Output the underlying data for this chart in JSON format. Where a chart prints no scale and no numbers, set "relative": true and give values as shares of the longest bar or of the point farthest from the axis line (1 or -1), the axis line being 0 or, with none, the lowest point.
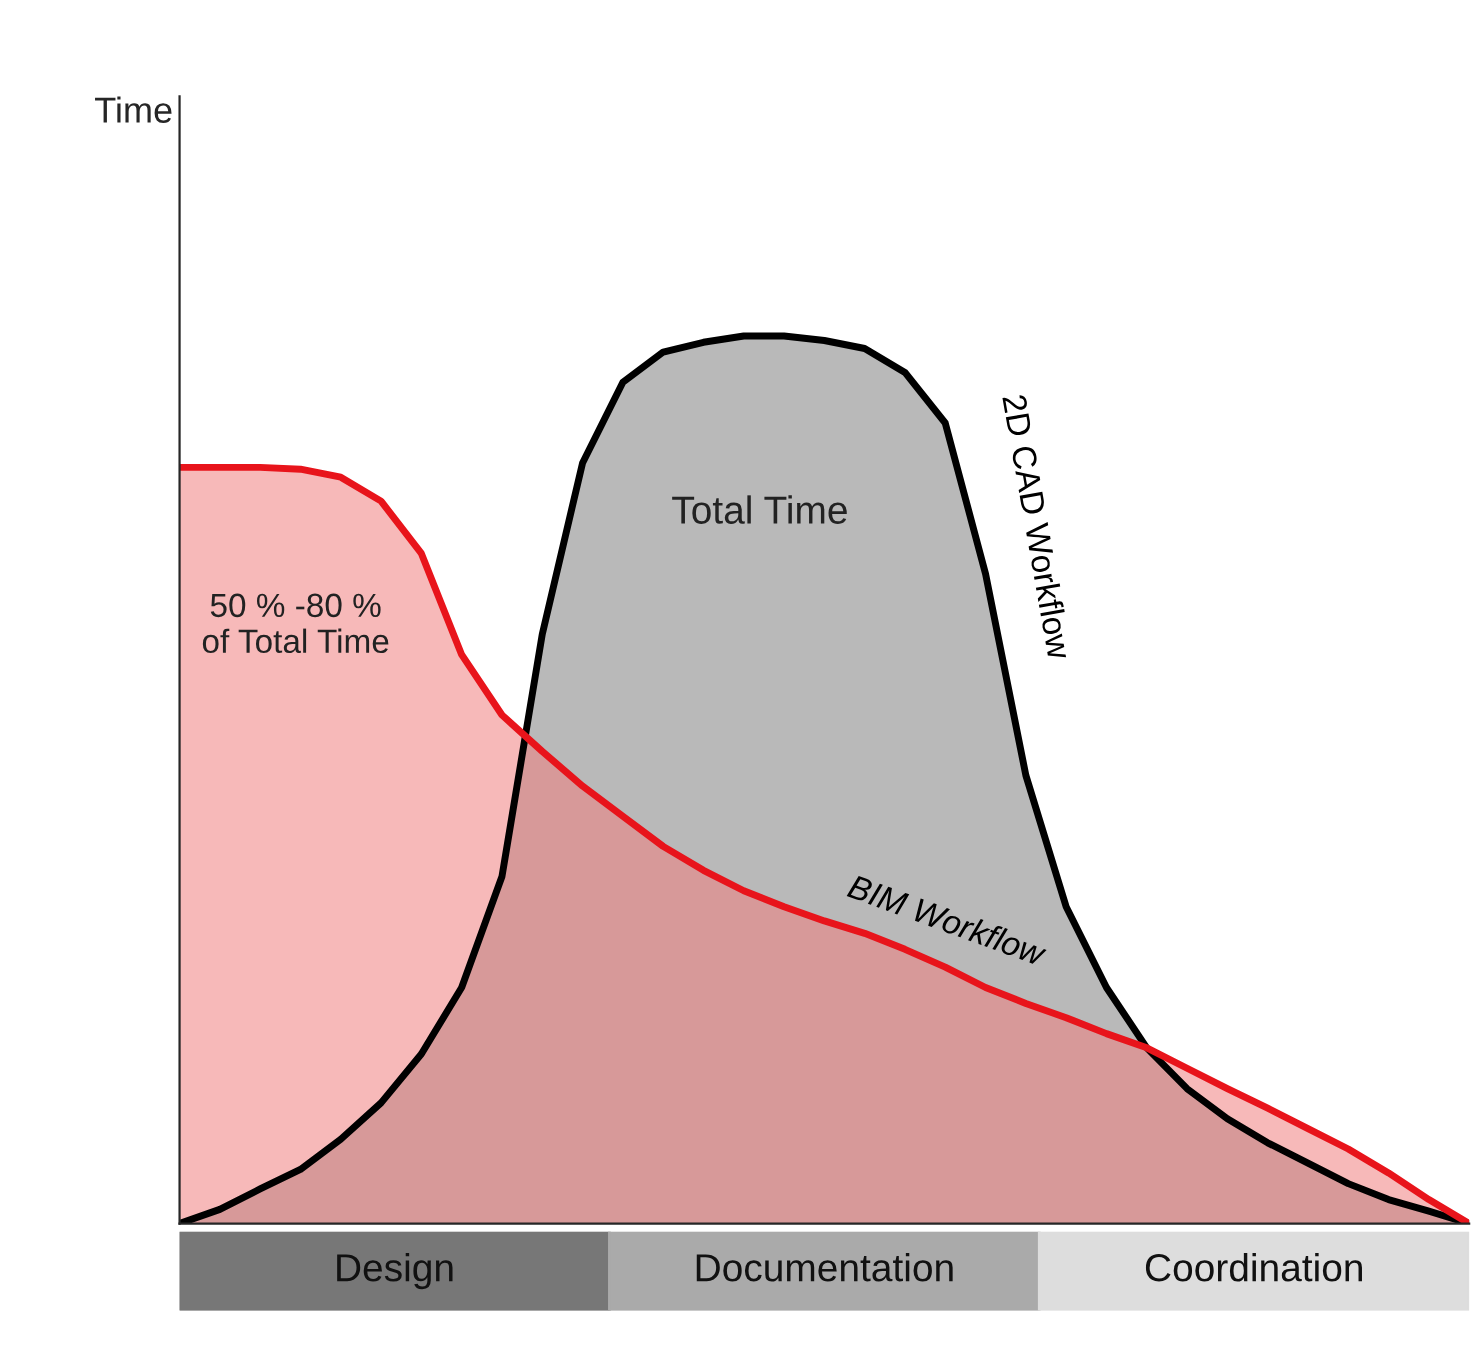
{
  "chart_data": {
    "type": "area",
    "relative": true,
    "categories": [
      null,
      null,
      null,
      null,
      null,
      null,
      null,
      null,
      null,
      null,
      null,
      null,
      null,
      null,
      null,
      null,
      null,
      null,
      null,
      null,
      null,
      null,
      null,
      null,
      null,
      null,
      null,
      null,
      null,
      null,
      null,
      null,
      null
    ],
    "series": [
      {
        "name": "2D CAD Workflow",
        "color": "#000000",
        "values": [
          0,
          0.016,
          0.039,
          0.061,
          0.095,
          0.136,
          0.191,
          0.266,
          0.391,
          0.664,
          0.857,
          0.948,
          0.982,
          0.993,
          1,
          1,
          0.995,
          0.986,
          0.959,
          0.902,
          0.732,
          0.505,
          0.357,
          0.266,
          0.198,
          0.152,
          0.118,
          0.091,
          0.068,
          0.045,
          0.027,
          0.014,
          0
        ]
      },
      {
        "name": "BIM Workflow",
        "color": "#e8141b",
        "values": [
          0.852,
          0.852,
          0.852,
          0.85,
          0.841,
          0.814,
          0.755,
          0.641,
          0.573,
          0.532,
          0.493,
          0.459,
          0.425,
          0.398,
          0.375,
          0.357,
          0.341,
          0.327,
          0.309,
          0.289,
          0.266,
          0.248,
          0.232,
          0.214,
          0.198,
          0.175,
          0.152,
          0.13,
          0.107,
          0.084,
          0.057,
          0.027,
          0
        ]
      }
    ],
    "annotations": [
      "Total Time",
      "50 % -80 %\nof Total Time",
      "Design",
      "Documentation",
      "Coordination",
      "Time"
    ],
    "grid": false,
    "legend": false
  }
}
